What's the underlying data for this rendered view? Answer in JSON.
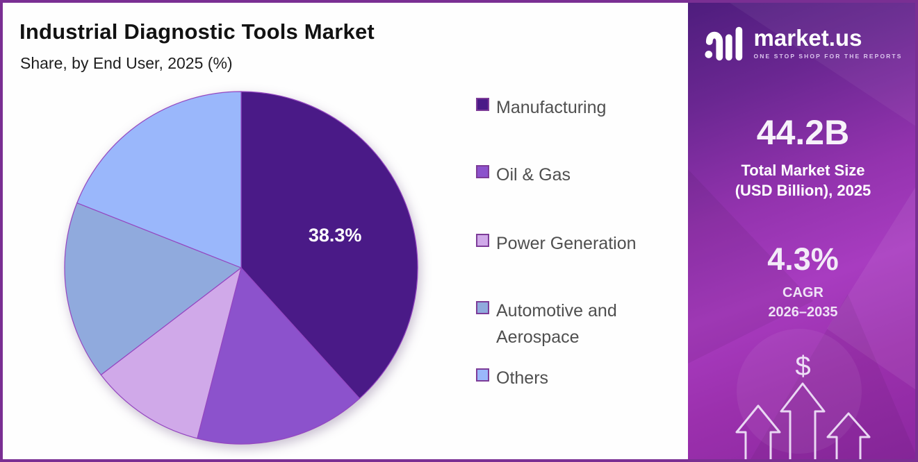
{
  "header": {
    "title": "Industrial Diagnostic Tools Market",
    "subtitle": "Share, by End User, 2025 (%)"
  },
  "chart_data": {
    "type": "pie",
    "title": "Industrial Diagnostic Tools Market",
    "subtitle": "Share, by End User, 2025 (%)",
    "unit": "%",
    "start_angle_deg": 0,
    "direction": "clockwise",
    "legend_position": "right",
    "categories": [
      "Manufacturing",
      "Oil & Gas",
      "Power Generation",
      "Automotive and Aerospace",
      "Others"
    ],
    "values": [
      38.3,
      15.7,
      10.6,
      16.4,
      19.0
    ],
    "data_labels": [
      "38.3%",
      "",
      "",
      "",
      ""
    ],
    "colors": [
      "#4a1a87",
      "#8c52cc",
      "#d0a9e9",
      "#90aadd",
      "#9ab7fb"
    ],
    "slice_stroke": "#9446c0",
    "legend_swatch_border": "#7d3c98"
  },
  "sidebar": {
    "brand": "market.us",
    "tagline": "ONE STOP SHOP FOR THE REPORTS",
    "market_size_value": "44.2B",
    "market_size_label_line1": "Total Market Size",
    "market_size_label_line2": "(USD Billion), 2025",
    "cagr_value": "4.3%",
    "cagr_label_line1": "CAGR",
    "cagr_label_line2": "2026–2035",
    "dollar_symbol": "$",
    "accent_colors": {
      "gradient_top": "#4e1d7d",
      "gradient_mid": "#a83cc0",
      "gradient_bottom": "#8c28a0",
      "arrow_outline": "#e9d7f3"
    }
  },
  "frame": {
    "border_color": "#7a2f93"
  }
}
